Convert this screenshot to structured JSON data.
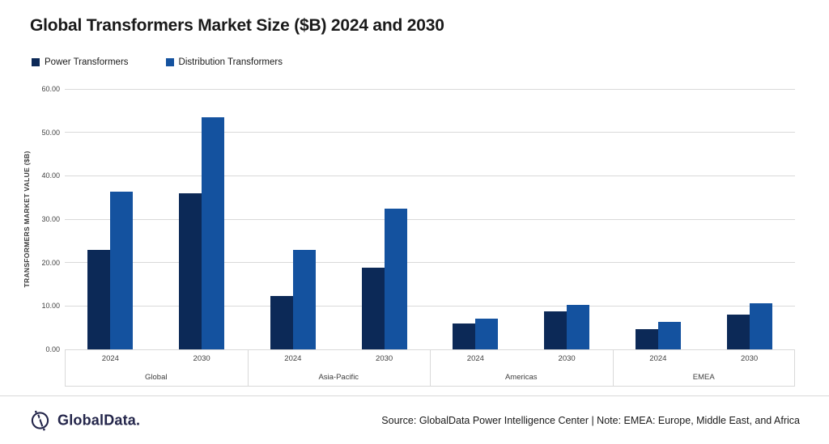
{
  "title": "Global Transformers Market Size ($B) 2024 and 2030",
  "chart_data": {
    "type": "bar",
    "title": "Global Transformers Market Size ($B) 2024 and 2030",
    "ylabel": "TRANSFORMERS MARKET VALUE ($B)",
    "ylim": [
      0,
      60
    ],
    "ytick_interval": 10,
    "grid": true,
    "legend_position": "top-left",
    "group_labels": [
      "Global",
      "Asia-Pacific",
      "Americas",
      "EMEA"
    ],
    "year_labels": [
      "2024",
      "2030"
    ],
    "categories": [
      {
        "group": "Global",
        "year": "2024"
      },
      {
        "group": "Global",
        "year": "2030"
      },
      {
        "group": "Asia-Pacific",
        "year": "2024"
      },
      {
        "group": "Asia-Pacific",
        "year": "2030"
      },
      {
        "group": "Americas",
        "year": "2024"
      },
      {
        "group": "Americas",
        "year": "2030"
      },
      {
        "group": "EMEA",
        "year": "2024"
      },
      {
        "group": "EMEA",
        "year": "2030"
      }
    ],
    "series": [
      {
        "name": "Power Transformers",
        "color": "#0c2957",
        "values": [
          23.0,
          35.9,
          12.3,
          18.8,
          6.0,
          8.7,
          4.7,
          8.0
        ]
      },
      {
        "name": "Distribution Transformers",
        "color": "#14529f",
        "values": [
          36.3,
          53.5,
          23.0,
          32.5,
          7.0,
          10.2,
          6.3,
          10.7
        ]
      }
    ]
  },
  "colors": {
    "gridline": "#d9d9d9",
    "axis_text": "#404040",
    "title_text": "#1a1a1a",
    "brand_navy": "#23254a"
  },
  "footer": {
    "brand": "GlobalData.",
    "source": "Source: GlobalData Power Intelligence Center | Note: EMEA: Europe, Middle East, and Africa"
  }
}
